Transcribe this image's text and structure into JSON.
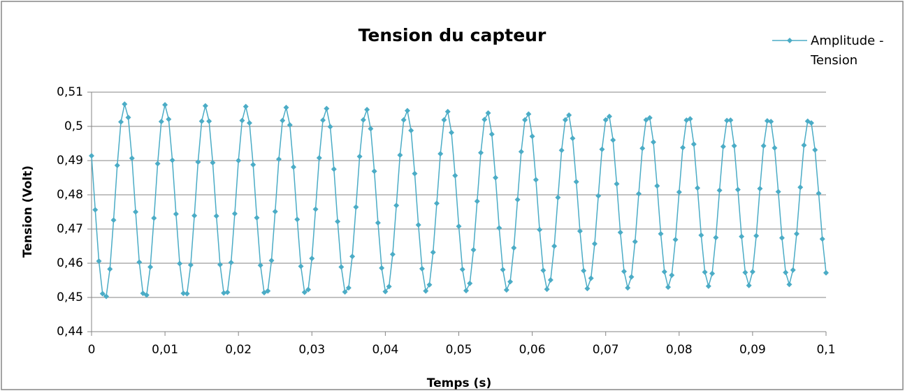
{
  "chart_data": {
    "type": "line",
    "title": "Tension du capteur",
    "x_label": "Temps (s)",
    "y_label": "Tension (Volt)",
    "x": [
      0,
      0.0005,
      0.001,
      0.0015,
      0.002,
      0.0025,
      0.003,
      0.0035,
      0.004,
      0.0045,
      0.005,
      0.0055,
      0.006,
      0.0065,
      0.007,
      0.0075,
      0.008,
      0.0085,
      0.009,
      0.0095,
      0.01,
      0.0105,
      0.011,
      0.0115,
      0.012,
      0.0125,
      0.013,
      0.0135,
      0.014,
      0.0145,
      0.015,
      0.0155,
      0.016,
      0.0165,
      0.017,
      0.0175,
      0.018,
      0.0185,
      0.019,
      0.0195,
      0.02,
      0.0205,
      0.021,
      0.0215,
      0.022,
      0.0225,
      0.023,
      0.0235,
      0.024,
      0.0245,
      0.025,
      0.0255,
      0.026,
      0.0265,
      0.027,
      0.0275,
      0.028,
      0.0285,
      0.029,
      0.0295,
      0.03,
      0.0305,
      0.031,
      0.0315,
      0.032,
      0.0325,
      0.033,
      0.0335,
      0.034,
      0.0345,
      0.035,
      0.0355,
      0.036,
      0.0365,
      0.037,
      0.0375,
      0.038,
      0.0385,
      0.039,
      0.0395,
      0.04,
      0.0405,
      0.041,
      0.0415,
      0.042,
      0.0425,
      0.043,
      0.0435,
      0.044,
      0.0445,
      0.045,
      0.0455,
      0.046,
      0.0465,
      0.047,
      0.0475,
      0.048,
      0.0485,
      0.049,
      0.0495,
      0.05,
      0.0505,
      0.051,
      0.0515,
      0.052,
      0.0525,
      0.053,
      0.0535,
      0.054,
      0.0545,
      0.055,
      0.0555,
      0.056,
      0.0565,
      0.057,
      0.0575,
      0.058,
      0.0585,
      0.059,
      0.0595,
      0.06,
      0.0605,
      0.061,
      0.0615,
      0.062,
      0.0625,
      0.063,
      0.0635,
      0.064,
      0.0645,
      0.065,
      0.0655,
      0.066,
      0.0665,
      0.067,
      0.0675,
      0.068,
      0.0685,
      0.069,
      0.0695,
      0.07,
      0.0705,
      0.071,
      0.0715,
      0.072,
      0.0725,
      0.073,
      0.0735,
      0.074,
      0.0745,
      0.075,
      0.0755,
      0.076,
      0.0765,
      0.077,
      0.0775,
      0.078,
      0.0785,
      0.079,
      0.0795,
      0.08,
      0.0805,
      0.081,
      0.0815,
      0.082,
      0.0825,
      0.083,
      0.0835,
      0.084,
      0.0845,
      0.085,
      0.0855,
      0.086,
      0.0865,
      0.087,
      0.0875,
      0.088,
      0.0885,
      0.089,
      0.0895,
      0.09,
      0.0905,
      0.091,
      0.0915,
      0.092,
      0.0925,
      0.093,
      0.0935,
      0.094,
      0.0945,
      0.095,
      0.0955,
      0.096,
      0.0965,
      0.097,
      0.0975,
      0.098,
      0.0985,
      0.099,
      0.0995,
      0.1
    ],
    "series": [
      {
        "name": "Amplitude - Tension",
        "color": "#4bacc6",
        "values": [
          0.4914,
          0.4756,
          0.4606,
          0.4511,
          0.4503,
          0.4583,
          0.4726,
          0.4886,
          0.5013,
          0.5065,
          0.5026,
          0.4907,
          0.475,
          0.4603,
          0.4512,
          0.4507,
          0.4589,
          0.4732,
          0.4891,
          0.5014,
          0.5063,
          0.5021,
          0.4901,
          0.4744,
          0.4599,
          0.4512,
          0.4511,
          0.4595,
          0.4739,
          0.4896,
          0.5015,
          0.506,
          0.5015,
          0.4894,
          0.4738,
          0.4596,
          0.4513,
          0.4515,
          0.4602,
          0.4745,
          0.49,
          0.5017,
          0.5058,
          0.501,
          0.4888,
          0.4733,
          0.4594,
          0.4514,
          0.4519,
          0.4608,
          0.4751,
          0.4904,
          0.5017,
          0.5055,
          0.5004,
          0.4881,
          0.4728,
          0.4591,
          0.4515,
          0.4523,
          0.4614,
          0.4758,
          0.4908,
          0.5018,
          0.5052,
          0.4999,
          0.4875,
          0.4722,
          0.4589,
          0.4516,
          0.4528,
          0.462,
          0.4764,
          0.4912,
          0.5019,
          0.5049,
          0.4993,
          0.4869,
          0.4718,
          0.4586,
          0.4517,
          0.4532,
          0.4626,
          0.4769,
          0.4916,
          0.5019,
          0.5046,
          0.4988,
          0.4862,
          0.4712,
          0.4584,
          0.4519,
          0.4537,
          0.4632,
          0.4775,
          0.492,
          0.5019,
          0.5043,
          0.4982,
          0.4856,
          0.4708,
          0.4582,
          0.452,
          0.4541,
          0.4639,
          0.4781,
          0.4923,
          0.502,
          0.5039,
          0.4977,
          0.485,
          0.4703,
          0.4581,
          0.4522,
          0.4546,
          0.4645,
          0.4786,
          0.4926,
          0.5019,
          0.5036,
          0.4971,
          0.4844,
          0.4698,
          0.4579,
          0.4524,
          0.4551,
          0.465,
          0.4792,
          0.493,
          0.5019,
          0.5033,
          0.4965,
          0.4838,
          0.4694,
          0.4578,
          0.4526,
          0.4556,
          0.4657,
          0.4797,
          0.4933,
          0.5019,
          0.5029,
          0.496,
          0.4832,
          0.469,
          0.4576,
          0.4528,
          0.456,
          0.4663,
          0.4803,
          0.4936,
          0.5019,
          0.5025,
          0.4954,
          0.4826,
          0.4686,
          0.4575,
          0.453,
          0.4565,
          0.4669,
          0.4808,
          0.4938,
          0.5018,
          0.5022,
          0.4948,
          0.482,
          0.4682,
          0.4574,
          0.4533,
          0.457,
          0.4675,
          0.4813,
          0.4941,
          0.5017,
          0.5018,
          0.4943,
          0.4815,
          0.4678,
          0.4573,
          0.4535,
          0.4575,
          0.468,
          0.4818,
          0.4943,
          0.5016,
          0.5014,
          0.4937,
          0.4809,
          0.4674,
          0.4573,
          0.4538,
          0.458,
          0.4686,
          0.4822,
          0.4945,
          0.5015,
          0.501,
          0.4931,
          0.4804,
          0.4671,
          0.4572
        ]
      }
    ],
    "xlim": [
      0,
      0.1
    ],
    "xticks": [
      0,
      {
        "value": 0.01,
        "label": "0,01"
      },
      {
        "value": 0.02,
        "label": "0,02"
      },
      {
        "value": 0.03,
        "label": "0,03"
      },
      {
        "value": 0.04,
        "label": "0,04"
      },
      {
        "value": 0.05,
        "label": "0,05"
      },
      {
        "value": 0.06,
        "label": "0,06"
      },
      {
        "value": 0.07,
        "label": "0,07"
      },
      {
        "value": 0.08,
        "label": "0,08"
      },
      {
        "value": 0.09,
        "label": "0,09"
      },
      {
        "value": 0.1,
        "label": "0,1"
      }
    ],
    "ylim": [
      0.44,
      0.51
    ],
    "yticks": [
      {
        "value": 0.44,
        "label": "0,44"
      },
      {
        "value": 0.45,
        "label": "0,45"
      },
      {
        "value": 0.46,
        "label": "0,46"
      },
      {
        "value": 0.47,
        "label": "0,47"
      },
      {
        "value": 0.48,
        "label": "0,48"
      },
      {
        "value": 0.49,
        "label": "0,49"
      },
      {
        "value": 0.5,
        "label": "0,5"
      },
      {
        "value": 0.51,
        "label": "0,51"
      }
    ],
    "grid": true,
    "legend": "top-right",
    "marker": "diamond"
  }
}
